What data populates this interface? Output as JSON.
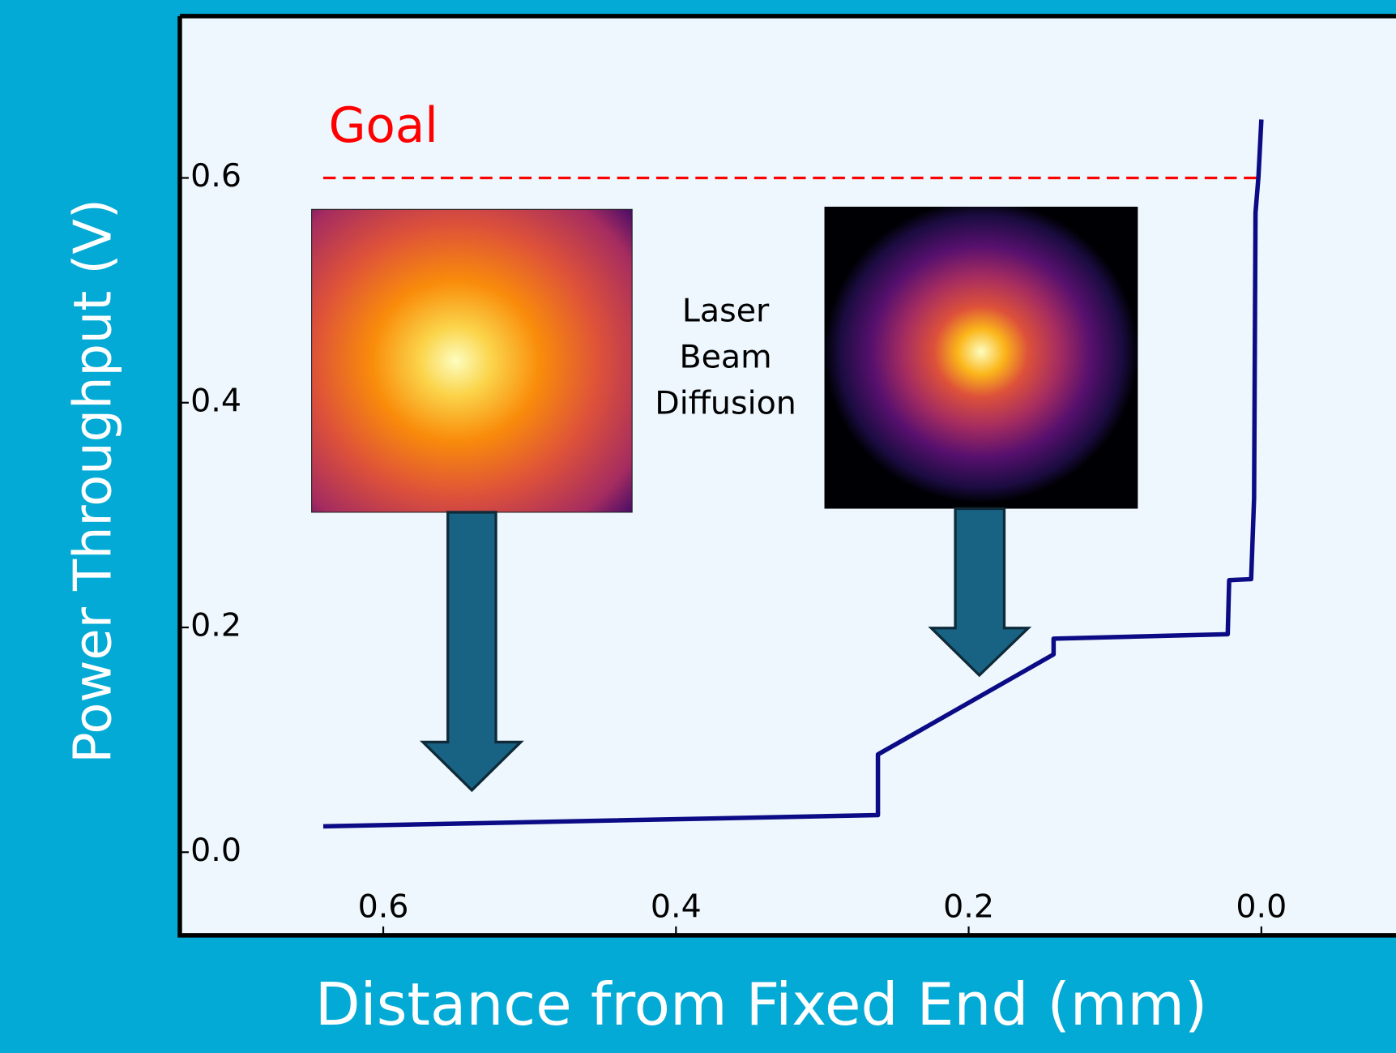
{
  "chart_data": {
    "type": "line",
    "x_label": "Distance from Fixed End (mm)",
    "y_label": "Power Throughput (V)",
    "x": [
      0.641,
      0.262,
      0.262,
      0.142,
      0.142,
      0.023,
      0.022,
      0.007,
      0.005,
      0.004,
      0.002,
      0.0
    ],
    "values": [
      0.023,
      0.033,
      0.087,
      0.176,
      0.19,
      0.194,
      0.242,
      0.243,
      0.315,
      0.569,
      0.601,
      0.652
    ],
    "color": "#0b0b85",
    "xlim": [
      0.739,
      -0.092
    ],
    "xticks": [
      0.6,
      0.4,
      0.2,
      {
        "value": 0,
        "label": "0.0"
      }
    ],
    "ylim": [
      -0.074,
      0.744
    ],
    "yticks": [
      {
        "value": 0,
        "label": "0.0"
      },
      0.2,
      0.4,
      0.6
    ],
    "goal": 0.6,
    "goal_label": "Goal",
    "goal_color": "#ff0000",
    "annotation_lines": [
      "Laser",
      "Beam",
      "Diffusion"
    ]
  }
}
